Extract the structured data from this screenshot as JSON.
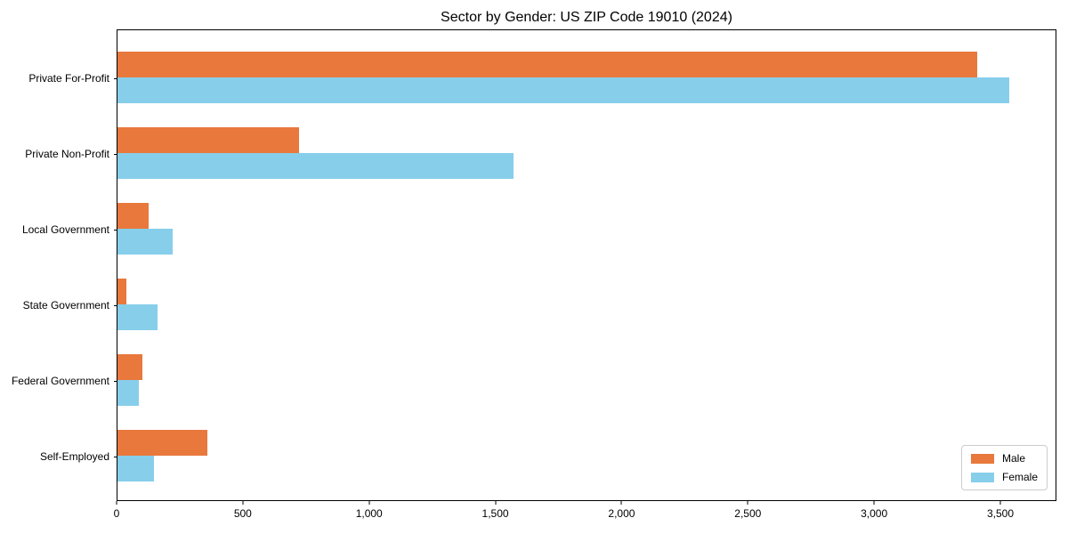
{
  "title": "Sector by Gender: US ZIP Code 19010 (2024)",
  "chart_data": {
    "type": "bar",
    "orientation": "horizontal",
    "title": "Sector by Gender: US ZIP Code 19010 (2024)",
    "categories": [
      "Private For-Profit",
      "Private Non-Profit",
      "Local Government",
      "State Government",
      "Federal Government",
      "Self-Employed"
    ],
    "series": [
      {
        "name": "Male",
        "color": "#e8783c",
        "values": [
          3410,
          720,
          125,
          35,
          100,
          355
        ]
      },
      {
        "name": "Female",
        "color": "#87ceeb",
        "values": [
          3540,
          1570,
          220,
          160,
          85,
          145
        ]
      }
    ],
    "xlabel": "",
    "ylabel": "",
    "xlim": [
      0,
      3722
    ],
    "xticks": [
      0,
      500,
      1000,
      1500,
      2000,
      2500,
      3000,
      3500
    ],
    "xtick_labels": [
      "0",
      "500",
      "1,000",
      "1,500",
      "2,000",
      "2,500",
      "3,000",
      "3,500"
    ],
    "legend": {
      "position": "lower right",
      "entries": [
        "Male",
        "Female"
      ]
    },
    "grid": false
  }
}
